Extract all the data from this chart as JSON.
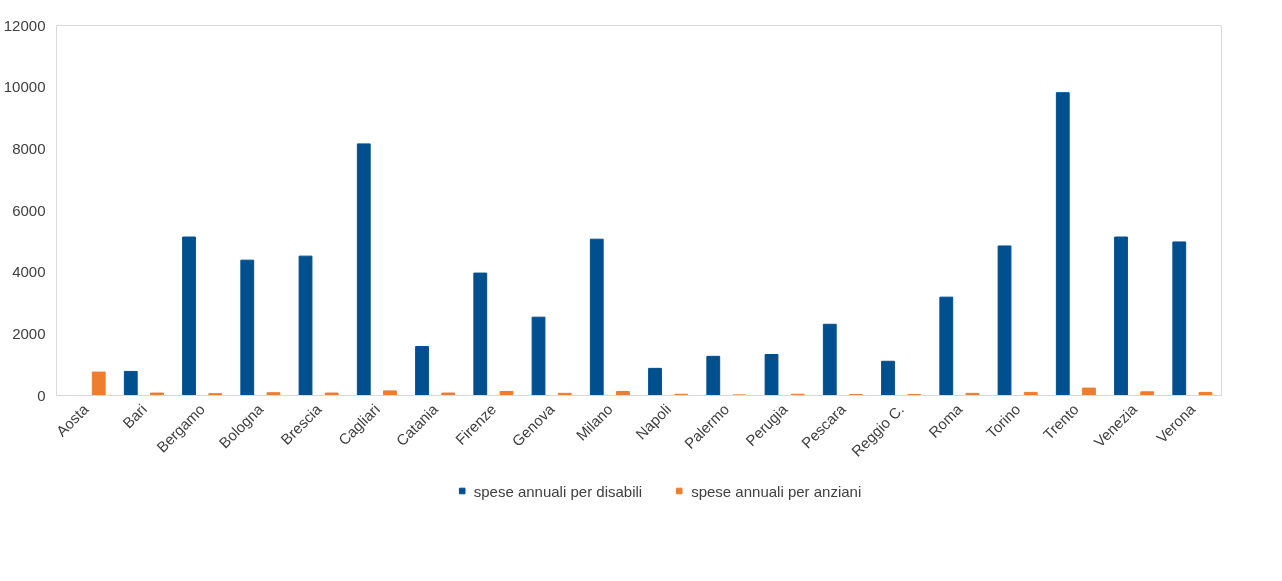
{
  "chart_data": {
    "type": "bar",
    "categories": [
      "Aosta",
      "Bari",
      "Bergamo",
      "Bologna",
      "Brescia",
      "Cagliari",
      "Catania",
      "Firenze",
      "Genova",
      "Milano",
      "Napoli",
      "Palermo",
      "Perugia",
      "Pescara",
      "Reggio C.",
      "Roma",
      "Torino",
      "Trento",
      "Venezia",
      "Verona"
    ],
    "series": [
      {
        "name": "spese annuali per disabili",
        "color": "#004f8f",
        "values": [
          0,
          780,
          5140,
          4390,
          4520,
          8160,
          1590,
          3970,
          2540,
          5070,
          880,
          1270,
          1330,
          2310,
          1110,
          3190,
          4850,
          9820,
          5140,
          4980
        ]
      },
      {
        "name": "spese annuali per anziani",
        "color": "#ed7d31",
        "values": [
          760,
          80,
          60,
          90,
          80,
          150,
          80,
          130,
          70,
          130,
          40,
          20,
          40,
          30,
          30,
          70,
          100,
          240,
          120,
          100
        ]
      }
    ],
    "ylim": [
      0,
      12000
    ],
    "yticks": [
      0,
      2000,
      4000,
      6000,
      8000,
      10000,
      12000
    ],
    "grid": false,
    "legend": "bottom"
  }
}
